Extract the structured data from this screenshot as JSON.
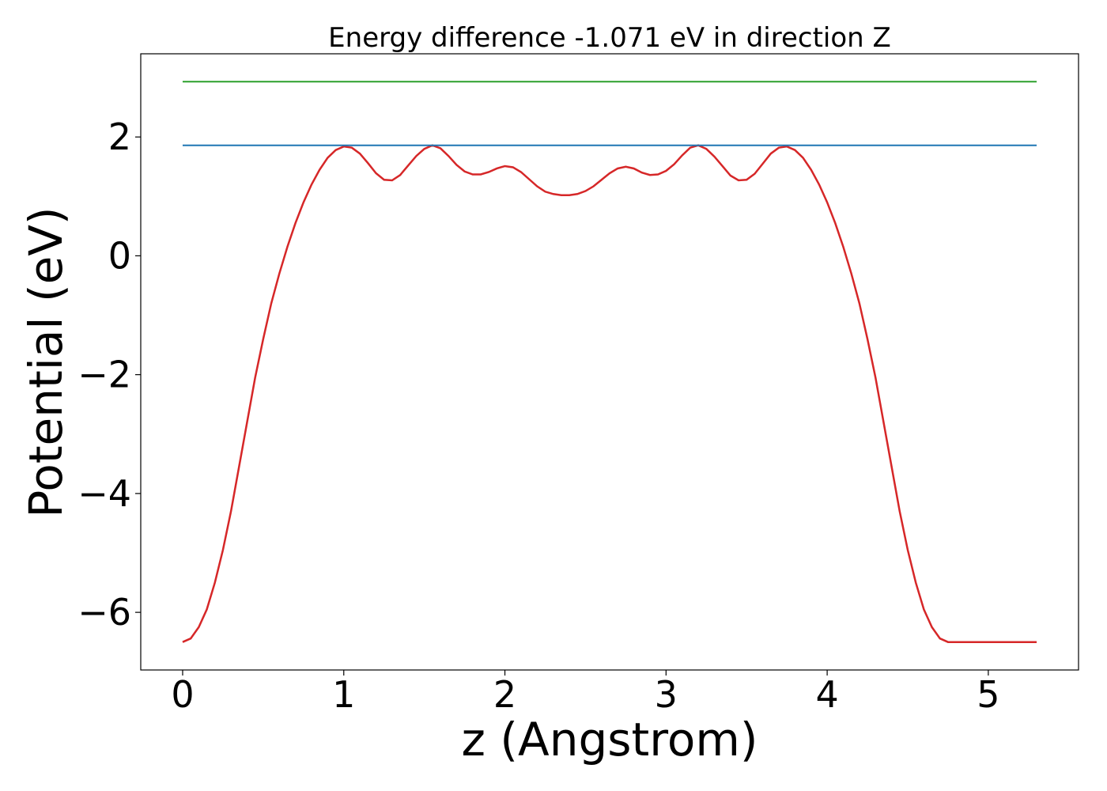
{
  "chart_data": {
    "type": "line",
    "title": "Energy difference -1.071 eV in direction Z",
    "xlabel": "z (Angstrom)",
    "ylabel": "Potential (eV)",
    "xlim": [
      -0.26,
      5.56
    ],
    "ylim": [
      -6.97,
      3.4
    ],
    "x_ticks": [
      0,
      1,
      2,
      3,
      4,
      5
    ],
    "x_tick_labels": [
      "0",
      "1",
      "2",
      "3",
      "4",
      "5"
    ],
    "y_ticks": [
      -6,
      -4,
      -2,
      0,
      2
    ],
    "y_tick_labels": [
      "−6",
      "−4",
      "−2",
      "0",
      "2"
    ],
    "grid": false,
    "legend": "none",
    "series": [
      {
        "color": "#d62728",
        "x": [
          0.0,
          0.05,
          0.1,
          0.15,
          0.2,
          0.25,
          0.3,
          0.35,
          0.4,
          0.45,
          0.5,
          0.55,
          0.6,
          0.65,
          0.7,
          0.75,
          0.8,
          0.85,
          0.9,
          0.95,
          1.0,
          1.05,
          1.1,
          1.15,
          1.2,
          1.25,
          1.3,
          1.35,
          1.4,
          1.45,
          1.5,
          1.55,
          1.6,
          1.65,
          1.7,
          1.75,
          1.8,
          1.85,
          1.9,
          1.95,
          2.0,
          2.05,
          2.1,
          2.15,
          2.2,
          2.25,
          2.3,
          2.35,
          2.4,
          2.45,
          2.5,
          2.55,
          2.6,
          2.65,
          2.7,
          2.75,
          2.8,
          2.85,
          2.9,
          2.95,
          3.0,
          3.05,
          3.1,
          3.15,
          3.2,
          3.25,
          3.3,
          3.35,
          3.4,
          3.45,
          3.5,
          3.55,
          3.6,
          3.65,
          3.7,
          3.75,
          3.8,
          3.85,
          3.9,
          3.95,
          4.0,
          4.05,
          4.1,
          4.15,
          4.2,
          4.25,
          4.3,
          4.35,
          4.4,
          4.45,
          4.5,
          4.55,
          4.6,
          4.65,
          4.7,
          4.75,
          4.8,
          4.85,
          4.9,
          4.95,
          5.0,
          5.05,
          5.1,
          5.15,
          5.2,
          5.25,
          5.3
        ],
        "y": [
          -6.5,
          -6.44,
          -6.25,
          -5.95,
          -5.5,
          -4.95,
          -4.3,
          -3.55,
          -2.8,
          -2.05,
          -1.4,
          -0.8,
          -0.3,
          0.15,
          0.55,
          0.9,
          1.2,
          1.45,
          1.65,
          1.78,
          1.84,
          1.82,
          1.72,
          1.56,
          1.39,
          1.28,
          1.27,
          1.36,
          1.52,
          1.68,
          1.8,
          1.86,
          1.81,
          1.68,
          1.53,
          1.42,
          1.37,
          1.37,
          1.41,
          1.47,
          1.51,
          1.49,
          1.41,
          1.29,
          1.17,
          1.08,
          1.04,
          1.02,
          1.02,
          1.04,
          1.09,
          1.17,
          1.28,
          1.39,
          1.47,
          1.5,
          1.47,
          1.4,
          1.36,
          1.37,
          1.43,
          1.54,
          1.69,
          1.82,
          1.86,
          1.8,
          1.67,
          1.51,
          1.35,
          1.27,
          1.28,
          1.38,
          1.55,
          1.72,
          1.82,
          1.84,
          1.78,
          1.65,
          1.45,
          1.2,
          0.9,
          0.55,
          0.15,
          -0.3,
          -0.8,
          -1.4,
          -2.05,
          -2.8,
          -3.55,
          -4.3,
          -4.95,
          -5.5,
          -5.95,
          -6.25,
          -6.44,
          -6.5,
          -6.5,
          -6.5,
          -6.5,
          -6.5,
          -6.5,
          -6.5,
          -6.5,
          -6.5,
          -6.5,
          -6.5,
          -6.5
        ]
      },
      {
        "color": "#1f77b4",
        "x": [
          0.0,
          5.3
        ],
        "y": [
          1.86,
          1.86
        ]
      },
      {
        "color": "#2ca02c",
        "x": [
          0.0,
          5.3
        ],
        "y": [
          2.93,
          2.93
        ]
      }
    ]
  }
}
